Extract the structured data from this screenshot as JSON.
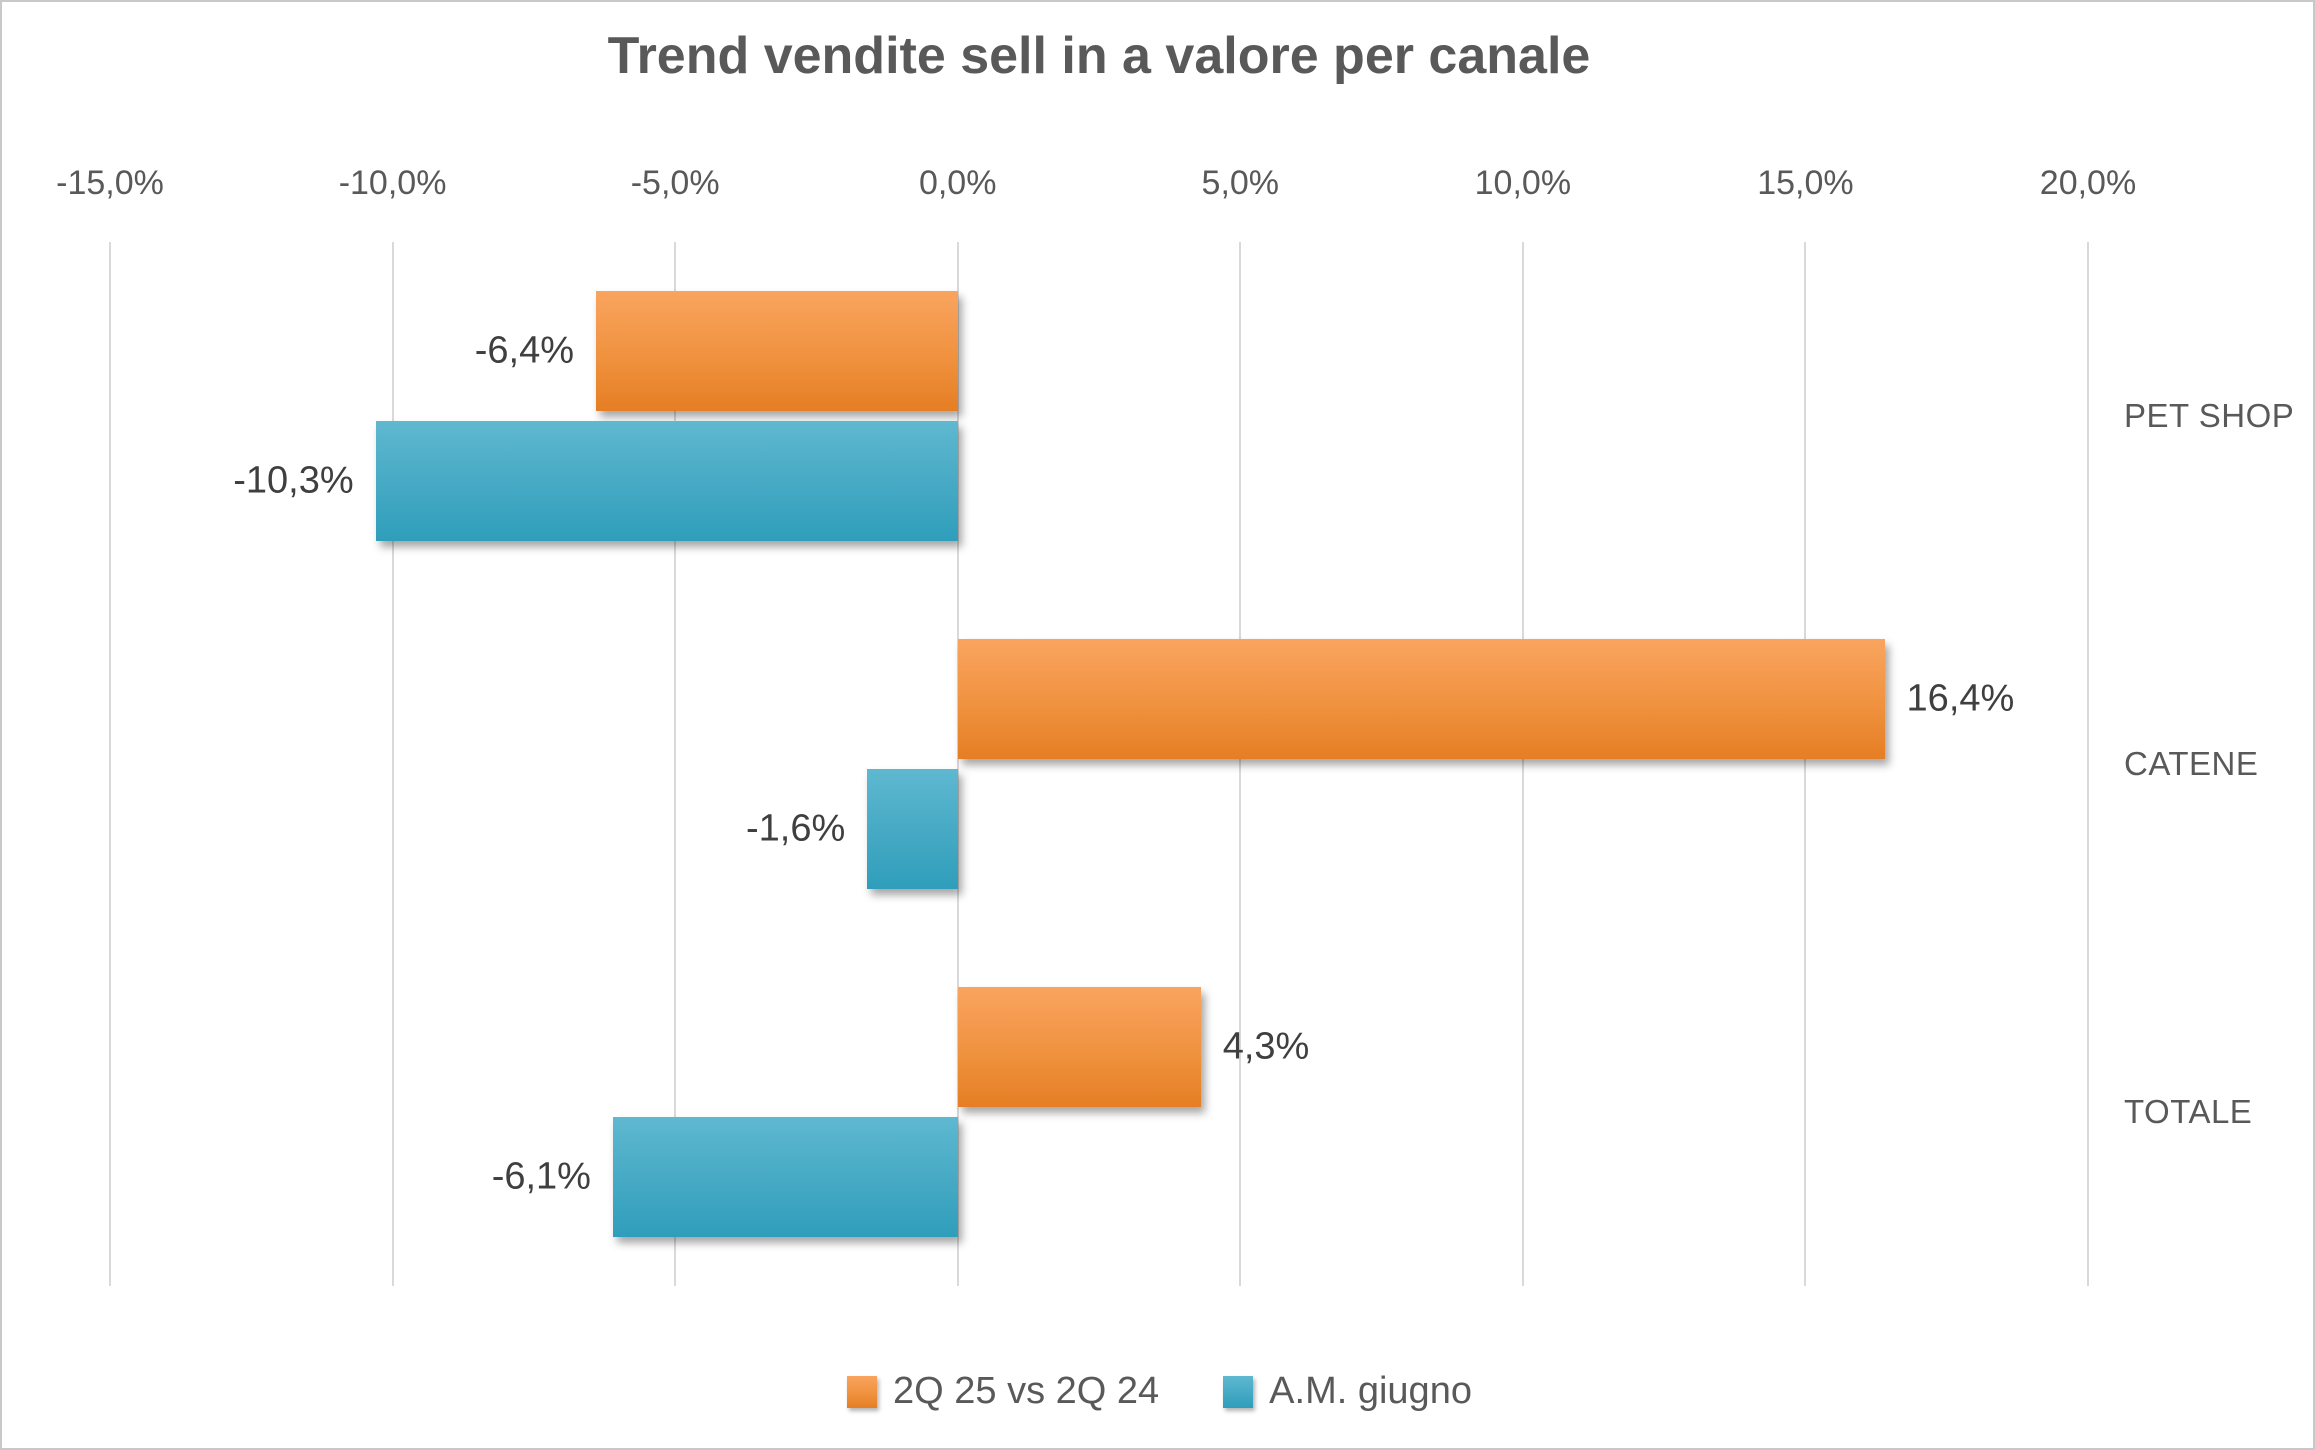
{
  "chart_data": {
    "type": "bar",
    "orientation": "horizontal",
    "title": "Trend vendite sell in a valore per canale",
    "categories": [
      "PET SHOP",
      "CATENE",
      "TOTALE"
    ],
    "series": [
      {
        "name": "2Q 25 vs 2Q 24",
        "values": [
          -6.4,
          16.4,
          4.3
        ],
        "labels": [
          "-6,4%",
          "16,4%",
          "4,3%"
        ],
        "color_top": "#f9a45f",
        "color_bottom": "#e57e24"
      },
      {
        "name": "A.M. giugno",
        "values": [
          -10.3,
          -1.6,
          -6.1
        ],
        "labels": [
          "-10,3%",
          "-1,6%",
          "-6,1%"
        ],
        "color_top": "#5fb8d0",
        "color_bottom": "#2f9ebb"
      }
    ],
    "x_axis": {
      "min": -15,
      "max": 20,
      "step": 5,
      "position": "top",
      "ticks": [
        {
          "value": -15,
          "label": "-15,0%"
        },
        {
          "value": -10,
          "label": "-10,0%"
        },
        {
          "value": -5,
          "label": "-5,0%"
        },
        {
          "value": 0,
          "label": "0,0%"
        },
        {
          "value": 5,
          "label": "5,0%"
        },
        {
          "value": 10,
          "label": "10,0%"
        },
        {
          "value": 15,
          "label": "15,0%"
        },
        {
          "value": 20,
          "label": "20,0%"
        }
      ]
    },
    "grid": true,
    "legend_position": "bottom",
    "colors": {
      "grid": "#d9d9d9",
      "title_text": "#595959",
      "axis_text": "#595959",
      "data_label_text": "#3f3f3f",
      "background": "#ffffff",
      "border": "#c8c8c8"
    }
  }
}
